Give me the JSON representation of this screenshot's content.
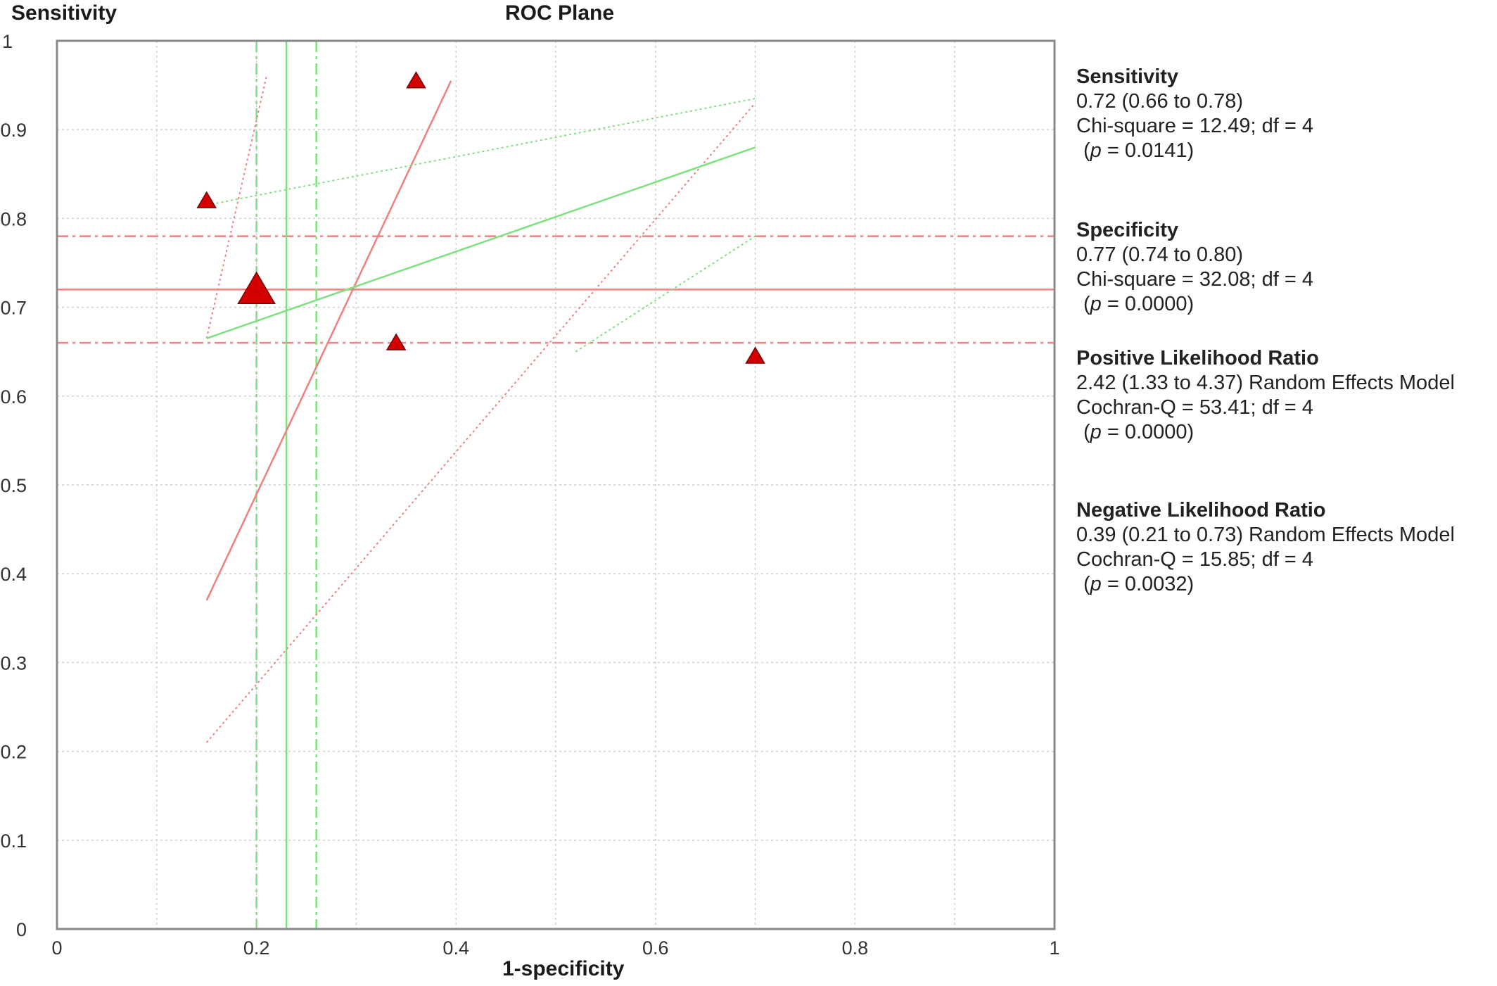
{
  "chart_data": {
    "type": "scatter",
    "title": "ROC Plane",
    "ylabel": "Sensitivity",
    "xlabel": "1-specificity",
    "xlim": [
      0,
      1
    ],
    "ylim": [
      0,
      1
    ],
    "xticks": [
      "0",
      "0.2",
      "0.4",
      "0.6",
      "0.8",
      "1"
    ],
    "yticks": [
      "0",
      "0.1",
      "0.2",
      "0.3",
      "0.4",
      "0.5",
      "0.6",
      "0.7",
      "0.8",
      "0.9",
      "1"
    ],
    "grid": true,
    "points": [
      {
        "x": 0.15,
        "y": 0.82
      },
      {
        "x": 0.36,
        "y": 0.955
      },
      {
        "x": 0.2,
        "y": 0.72,
        "pooled": true
      },
      {
        "x": 0.34,
        "y": 0.66
      },
      {
        "x": 0.7,
        "y": 0.645
      }
    ],
    "pooled_sensitivity": {
      "estimate": 0.72,
      "ci": [
        0.66,
        0.78
      ]
    },
    "pooled_fpr": {
      "estimate": 0.23,
      "ci": [
        0.2,
        0.26
      ]
    },
    "plr_line": {
      "estimate": [
        [
          0.15,
          0.37
        ],
        [
          0.395,
          0.955
        ]
      ],
      "ci_low": [
        [
          0.15,
          0.21
        ],
        [
          0.7,
          0.93
        ]
      ],
      "ci_high": [
        [
          0.15,
          0.665
        ],
        [
          0.21,
          0.96
        ]
      ]
    },
    "nlr_line": {
      "estimate": [
        [
          0.15,
          0.665
        ],
        [
          0.7,
          0.88
        ]
      ],
      "ci_low": [
        [
          0.52,
          0.65
        ],
        [
          0.7,
          0.78
        ]
      ],
      "ci_high": [
        [
          0.15,
          0.815
        ],
        [
          0.7,
          0.935
        ]
      ]
    },
    "colors": {
      "sensitivity": "#f08080",
      "specificity": "#7ee07e",
      "point": "#d40000",
      "grid": "#cfcfcf"
    }
  },
  "stats": {
    "sensitivity": {
      "heading": "Sensitivity",
      "line1": "0.72 (0.66 to 0.78)",
      "line2": "Chi-square = 12.49; df =  4",
      "p_label": "p",
      "p_value": " = 0.0141)"
    },
    "specificity": {
      "heading": "Specificity",
      "line1": "0.77 (0.74 to 0.80)",
      "line2": "Chi-square = 32.08; df =  4",
      "p_label": "p",
      "p_value": " = 0.0000)"
    },
    "plr": {
      "heading": "Positive Likelihood Ratio",
      "line1": "2.42 (1.33 to 4.37) Random Effects Model",
      "line2": "Cochran-Q = 53.41; df =  4",
      "p_label": "p",
      "p_value": " = 0.0000)"
    },
    "nlr": {
      "heading": "Negative Likelihood Ratio",
      "line1": "0.39 (0.21 to 0.73) Random Effects Model",
      "line2": "Cochran-Q = 15.85; df =  4",
      "p_label": "p",
      "p_value": " = 0.0032)"
    }
  }
}
